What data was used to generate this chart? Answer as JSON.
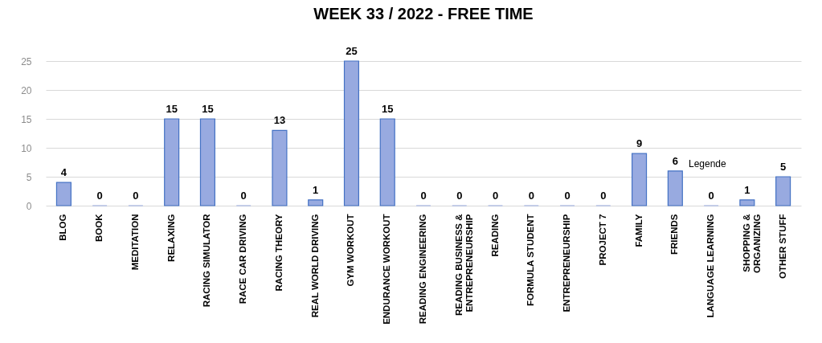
{
  "chart_data": {
    "type": "bar",
    "title": "WEEK 33 / 2022 - FREE TIME",
    "categories": [
      "BLOG",
      "BOOK",
      "MEDITATION",
      "RELAXING",
      "RACING SIMULATOR",
      "RACE CAR DRIVING",
      "RACING THEORY",
      "REAL WORLD DRIVING",
      "GYM WORKOUT",
      "ENDURANCE WORKOUT",
      "READING ENGINEERING",
      "READING BUSINESS & ENTREPRENEURSHIP",
      "READING",
      "FORMULA STUDENT",
      "ENTREPRENEURSHIP",
      "PROJECT 7",
      "FAMILY",
      "FRIENDS",
      "LANGUAGE LEARNING",
      "SHOPPING & ORGANIZING",
      "OTHER STUFF"
    ],
    "values": [
      4,
      0,
      0,
      15,
      15,
      0,
      13,
      1,
      25,
      15,
      0,
      0,
      0,
      0,
      0,
      0,
      9,
      6,
      0,
      1,
      5
    ],
    "color": "#98aae0",
    "ylim": [
      0,
      25
    ],
    "yticks": [
      0,
      5,
      10,
      15,
      20,
      25
    ],
    "grid": "y",
    "data_labels": true,
    "annotations": [
      "Legende"
    ]
  }
}
